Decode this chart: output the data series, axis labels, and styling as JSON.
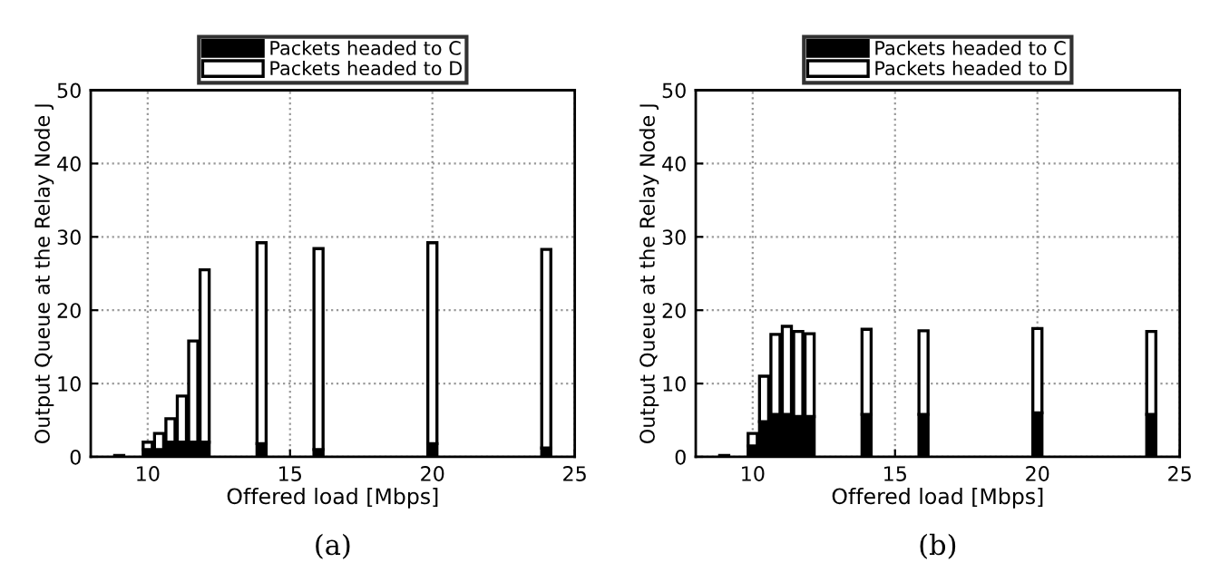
{
  "chart_data": [
    {
      "type": "bar",
      "stacked": true,
      "xlabel": "Offered load [Mbps]",
      "ylabel": "Output Queue at the Relay Node J",
      "annotations": [
        "(a)"
      ],
      "x": [
        9,
        10,
        10.4,
        10.8,
        11.2,
        11.6,
        12,
        14,
        16,
        20,
        24
      ],
      "series": [
        {
          "name": "Packets headed to C",
          "color": "#000000",
          "values": [
            0,
            1,
            1,
            2,
            2,
            2,
            2,
            1.8,
            1,
            1.8,
            1.2
          ]
        },
        {
          "name": "Packets headed to D",
          "color": "#ffffff",
          "values": [
            0.2,
            1,
            2.2,
            3.2,
            6.3,
            13.8,
            23.5,
            27.4,
            27.4,
            27.4,
            27.1
          ]
        }
      ],
      "xlim": [
        8,
        25
      ],
      "xticks": [
        10,
        15,
        20,
        25
      ],
      "ylim": [
        0,
        50
      ],
      "yticks": [
        0,
        10,
        20,
        30,
        40,
        50
      ],
      "grid": true,
      "legend": "top"
    },
    {
      "type": "bar",
      "stacked": true,
      "xlabel": "Offered load [Mbps]",
      "ylabel": "Output Queue at the Relay Node J",
      "annotations": [
        "(b)"
      ],
      "x": [
        9,
        10,
        10.4,
        10.8,
        11.2,
        11.6,
        12,
        14,
        16,
        20,
        24
      ],
      "series": [
        {
          "name": "Packets headed to C",
          "color": "#000000",
          "values": [
            0,
            1.5,
            4.8,
            5.8,
            5.8,
            5.5,
            5.5,
            5.8,
            5.8,
            6,
            5.8
          ]
        },
        {
          "name": "Packets headed to D",
          "color": "#ffffff",
          "values": [
            0.2,
            1.7,
            6.2,
            10.9,
            12,
            11.6,
            11.3,
            11.6,
            11.4,
            11.5,
            11.3
          ]
        }
      ],
      "xlim": [
        8,
        25
      ],
      "xticks": [
        10,
        15,
        20,
        25
      ],
      "ylim": [
        0,
        50
      ],
      "yticks": [
        0,
        10,
        20,
        30,
        40,
        50
      ],
      "grid": true,
      "legend": "top"
    }
  ]
}
